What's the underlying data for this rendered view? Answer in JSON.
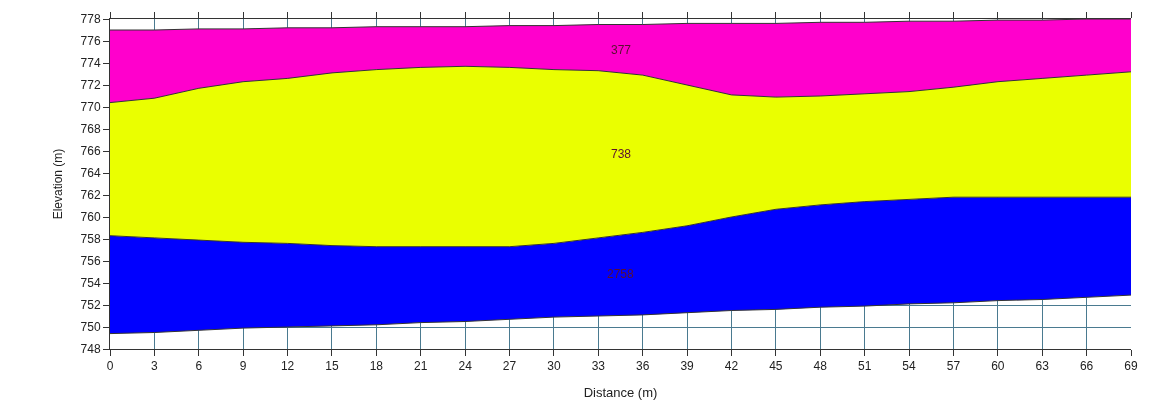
{
  "chart_data": {
    "type": "area",
    "xlabel": "Distance (m)",
    "ylabel": "Elevation (m)",
    "x": [
      0,
      3,
      6,
      9,
      12,
      15,
      18,
      21,
      24,
      27,
      30,
      33,
      36,
      39,
      42,
      45,
      48,
      51,
      54,
      57,
      60,
      63,
      66,
      69
    ],
    "series": [
      {
        "type": "line",
        "color": "#333333",
        "values": [
          749.4,
          749.5,
          749.7,
          749.9,
          750.0,
          750.1,
          750.2,
          750.4,
          750.5,
          750.7,
          750.9,
          751.0,
          751.1,
          751.3,
          751.5,
          751.6,
          751.8,
          751.9,
          752.1,
          752.2,
          752.4,
          752.5,
          752.7,
          752.9
        ]
      },
      {
        "name": "2758",
        "color": "#0000ff",
        "values": [
          758.3,
          758.1,
          757.9,
          757.7,
          757.6,
          757.4,
          757.3,
          757.3,
          757.3,
          757.3,
          757.6,
          758.1,
          758.6,
          759.2,
          760.0,
          760.7,
          761.1,
          761.4,
          761.6,
          761.8,
          761.8,
          761.8,
          761.8,
          761.8
        ]
      },
      {
        "name": "738",
        "color": "#eaff00",
        "values": [
          770.4,
          770.8,
          771.7,
          772.3,
          772.6,
          773.1,
          773.4,
          773.6,
          773.7,
          773.6,
          773.4,
          773.3,
          772.9,
          772.0,
          771.1,
          770.9,
          771.0,
          771.2,
          771.4,
          771.8,
          772.3,
          772.6,
          772.9,
          773.2
        ]
      },
      {
        "name": "377",
        "color": "#ff00cc",
        "values": [
          777.0,
          777.0,
          777.1,
          777.1,
          777.2,
          777.2,
          777.3,
          777.3,
          777.3,
          777.4,
          777.4,
          777.5,
          777.5,
          777.6,
          777.6,
          777.6,
          777.7,
          777.7,
          777.8,
          777.8,
          777.9,
          777.9,
          778.0,
          778.0
        ]
      }
    ],
    "xlim": [
      0,
      69
    ],
    "xticks": [
      0,
      3,
      6,
      9,
      12,
      15,
      18,
      21,
      24,
      27,
      30,
      33,
      36,
      39,
      42,
      45,
      48,
      51,
      54,
      57,
      60,
      63,
      66,
      69
    ],
    "ylim": [
      748,
      778
    ],
    "yticks": [
      748,
      750,
      752,
      754,
      756,
      758,
      760,
      762,
      764,
      766,
      768,
      770,
      772,
      774,
      776,
      778
    ],
    "grid": true
  }
}
